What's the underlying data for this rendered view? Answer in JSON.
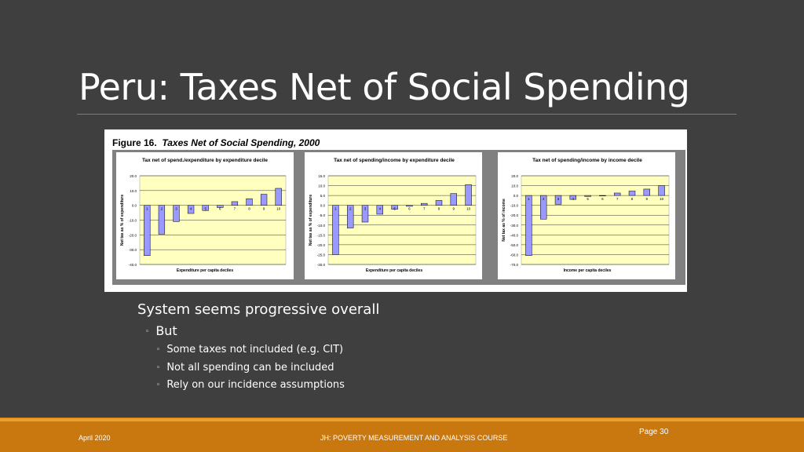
{
  "slide": {
    "title": "Peru: Taxes Net of Social Spending",
    "figure_caption_prefix": "Figure 16.",
    "figure_caption_title": "Taxes Net of Social Spending, 2000",
    "bullets": {
      "level1": "System seems progressive overall",
      "level2": "But",
      "level3": [
        "Some taxes not included (e.g. CIT)",
        "Not all spending can be included",
        "Rely on our incidence assumptions"
      ]
    },
    "footer": {
      "date": "April 2020",
      "course": "JH: POVERTY MEASUREMENT AND ANALYSIS COURSE",
      "page": "Page 30"
    }
  },
  "chart_data": [
    {
      "type": "bar",
      "title": "Tax net of spend./expenditure by expenditure decile",
      "xlabel": "Expenditure per capita deciles",
      "ylabel": "Net tax as % of expenditure",
      "categories": [
        "1",
        "2",
        "3",
        "4",
        "5",
        "6",
        "7",
        "8",
        "9",
        "10"
      ],
      "values": [
        -34.0,
        -19.5,
        -11.0,
        -5.5,
        -3.5,
        -1.5,
        2.5,
        4.5,
        7.5,
        11.5
      ],
      "ylim": [
        -40,
        20
      ],
      "yticks": [
        "20.0",
        "10.0",
        "0.0",
        "-10.0",
        "-20.0",
        "-30.0",
        "-40.0"
      ],
      "grid": true,
      "colors": {
        "bar": "#9999ff",
        "plot_bg": "#ffffc0"
      }
    },
    {
      "type": "bar",
      "title": "Tax net of spending/income by expenditure decile",
      "xlabel": "Expenditure per capita deciles",
      "ylabel": "Net tax as % of expenditure",
      "categories": [
        "1",
        "2",
        "3",
        "4",
        "5",
        "6",
        "7",
        "8",
        "9",
        "10"
      ],
      "values": [
        -25.0,
        -11.5,
        -8.5,
        -4.5,
        -2.0,
        -0.5,
        1.0,
        2.5,
        6.0,
        10.5
      ],
      "ylim": [
        -30,
        15
      ],
      "yticks": [
        "15.0",
        "10.0",
        "5.0",
        "0.0",
        "-5.0",
        "-10.0",
        "-15.0",
        "-20.0",
        "-25.0",
        "-30.0"
      ],
      "grid": true,
      "colors": {
        "bar": "#9999ff",
        "plot_bg": "#ffffc0"
      }
    },
    {
      "type": "bar",
      "title": "Tax net of spending/income by income decile",
      "xlabel": "Income per capita deciles",
      "ylabel": "Net tax as % of income",
      "categories": [
        "1",
        "2",
        "3",
        "4",
        "5",
        "6",
        "7",
        "8",
        "9",
        "10"
      ],
      "values": [
        -61.0,
        -24.0,
        -9.0,
        -4.0,
        -1.0,
        0.0,
        2.5,
        4.5,
        6.5,
        10.0
      ],
      "ylim": [
        -70,
        20
      ],
      "yticks": [
        "20.0",
        "10.0",
        "0.0",
        "-10.0",
        "-20.0",
        "-30.0",
        "-40.0",
        "-50.0",
        "-60.0",
        "-70.0"
      ],
      "grid": true,
      "colors": {
        "bar": "#9999ff",
        "plot_bg": "#ffffc0"
      }
    }
  ]
}
